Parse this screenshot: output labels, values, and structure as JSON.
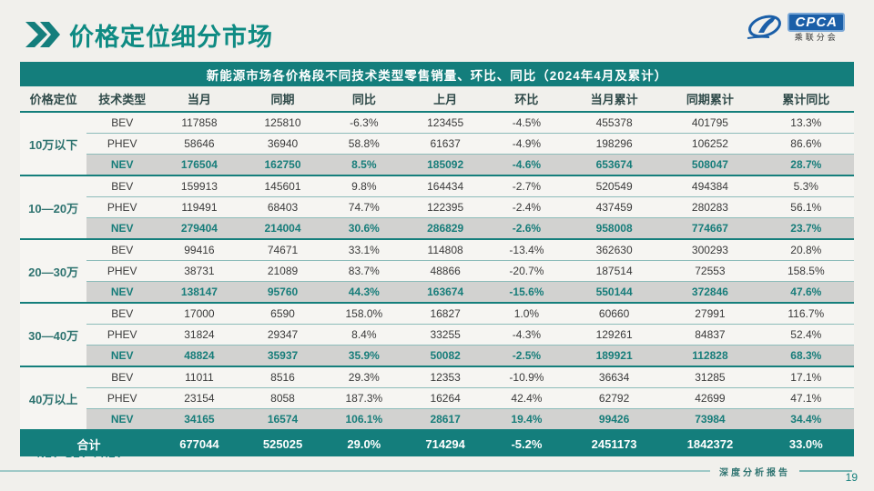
{
  "slide": {
    "title": "价格定位细分市场",
    "footnote": "*NEV=BEV+PHEV",
    "footer_text": "深度分析报告",
    "page_number": "19"
  },
  "logo": {
    "brand": "CPCA",
    "sub": "乘联分会"
  },
  "table": {
    "title": "新能源市场各价格段不同技术类型零售销量、环比、同比（2024年4月及累计）",
    "headers": [
      "价格定位",
      "技术类型",
      "当月",
      "同期",
      "同比",
      "上月",
      "环比",
      "当月累计",
      "同期累计",
      "累计同比"
    ],
    "groups": [
      {
        "label": "10万以下",
        "rows": [
          {
            "type": "BEV",
            "values": [
              "117858",
              "125810",
              "-6.3%",
              "123455",
              "-4.5%",
              "455378",
              "401795",
              "13.3%"
            ]
          },
          {
            "type": "PHEV",
            "values": [
              "58646",
              "36940",
              "58.8%",
              "61637",
              "-4.9%",
              "198296",
              "106252",
              "86.6%"
            ]
          },
          {
            "type": "NEV",
            "values": [
              "176504",
              "162750",
              "8.5%",
              "185092",
              "-4.6%",
              "653674",
              "508047",
              "28.7%"
            ]
          }
        ]
      },
      {
        "label": "10—20万",
        "rows": [
          {
            "type": "BEV",
            "values": [
              "159913",
              "145601",
              "9.8%",
              "164434",
              "-2.7%",
              "520549",
              "494384",
              "5.3%"
            ]
          },
          {
            "type": "PHEV",
            "values": [
              "119491",
              "68403",
              "74.7%",
              "122395",
              "-2.4%",
              "437459",
              "280283",
              "56.1%"
            ]
          },
          {
            "type": "NEV",
            "values": [
              "279404",
              "214004",
              "30.6%",
              "286829",
              "-2.6%",
              "958008",
              "774667",
              "23.7%"
            ]
          }
        ]
      },
      {
        "label": "20—30万",
        "rows": [
          {
            "type": "BEV",
            "values": [
              "99416",
              "74671",
              "33.1%",
              "114808",
              "-13.4%",
              "362630",
              "300293",
              "20.8%"
            ]
          },
          {
            "type": "PHEV",
            "values": [
              "38731",
              "21089",
              "83.7%",
              "48866",
              "-20.7%",
              "187514",
              "72553",
              "158.5%"
            ]
          },
          {
            "type": "NEV",
            "values": [
              "138147",
              "95760",
              "44.3%",
              "163674",
              "-15.6%",
              "550144",
              "372846",
              "47.6%"
            ]
          }
        ]
      },
      {
        "label": "30—40万",
        "rows": [
          {
            "type": "BEV",
            "values": [
              "17000",
              "6590",
              "158.0%",
              "16827",
              "1.0%",
              "60660",
              "27991",
              "116.7%"
            ]
          },
          {
            "type": "PHEV",
            "values": [
              "31824",
              "29347",
              "8.4%",
              "33255",
              "-4.3%",
              "129261",
              "84837",
              "52.4%"
            ]
          },
          {
            "type": "NEV",
            "values": [
              "48824",
              "35937",
              "35.9%",
              "50082",
              "-2.5%",
              "189921",
              "112828",
              "68.3%"
            ]
          }
        ]
      },
      {
        "label": "40万以上",
        "rows": [
          {
            "type": "BEV",
            "values": [
              "11011",
              "8516",
              "29.3%",
              "12353",
              "-10.9%",
              "36634",
              "31285",
              "17.1%"
            ]
          },
          {
            "type": "PHEV",
            "values": [
              "23154",
              "8058",
              "187.3%",
              "16264",
              "42.4%",
              "62792",
              "42699",
              "47.1%"
            ]
          },
          {
            "type": "NEV",
            "values": [
              "34165",
              "16574",
              "106.1%",
              "28617",
              "19.4%",
              "99426",
              "73984",
              "34.4%"
            ]
          }
        ]
      }
    ],
    "total": {
      "label": "合计",
      "values": [
        "677044",
        "525025",
        "29.0%",
        "714294",
        "-5.2%",
        "2451173",
        "1842372",
        "33.0%"
      ]
    }
  },
  "colors": {
    "teal": "#147e7c",
    "title_text": "#0f8b83",
    "nev_row_bg": "#d2d2d0",
    "slide_bg": "#f1f0ec",
    "logo_blue": "#1b5fa8"
  }
}
